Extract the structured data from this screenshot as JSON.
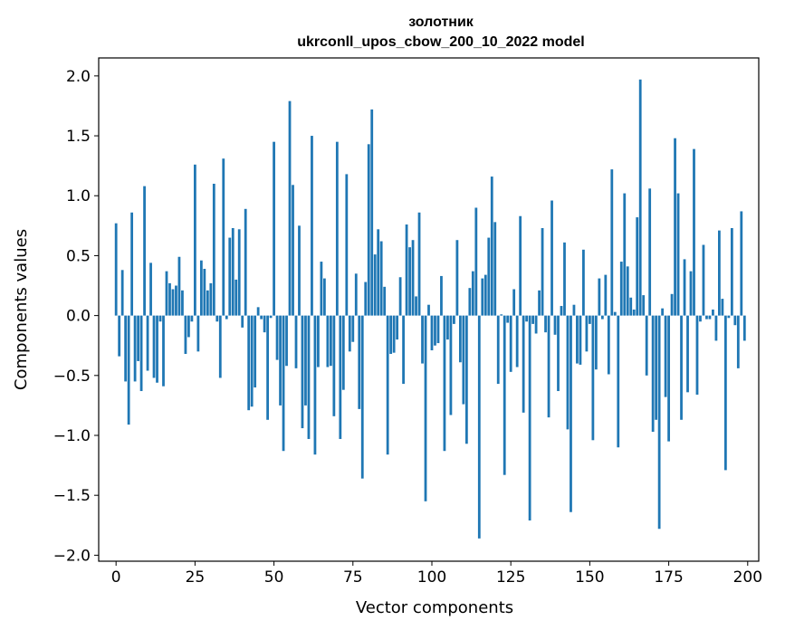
{
  "chart_data": {
    "type": "bar",
    "title": "золотник",
    "subtitle": "ukrconll_upos_cbow_200_10_2022 model",
    "xlabel": "Vector components",
    "ylabel": "Components values",
    "xlim": [
      -5.5,
      203.5
    ],
    "ylim": [
      -2.05,
      2.15
    ],
    "xticks": [
      0,
      25,
      50,
      75,
      100,
      125,
      150,
      175,
      200
    ],
    "yticks": [
      -2.0,
      -1.5,
      -1.0,
      -0.5,
      0.0,
      0.5,
      1.0,
      1.5,
      2.0
    ],
    "xtick_labels": [
      "0",
      "25",
      "50",
      "75",
      "100",
      "125",
      "150",
      "175",
      "200"
    ],
    "ytick_labels": [
      "−2.0",
      "−1.5",
      "−1.0",
      "−0.5",
      "0.0",
      "0.5",
      "1.0",
      "1.5",
      "2.0"
    ],
    "bar_color": "#1f77b4",
    "values": [
      0.77,
      -0.34,
      0.38,
      -0.55,
      -0.91,
      0.86,
      -0.55,
      -0.38,
      -0.63,
      1.08,
      -0.46,
      0.44,
      -0.52,
      -0.56,
      -0.05,
      -0.59,
      0.37,
      0.27,
      0.22,
      0.25,
      0.49,
      0.21,
      -0.32,
      -0.18,
      -0.05,
      1.26,
      -0.3,
      0.46,
      0.39,
      0.21,
      0.27,
      1.1,
      -0.05,
      -0.52,
      1.31,
      -0.03,
      0.65,
      0.73,
      0.3,
      0.72,
      -0.1,
      0.89,
      -0.79,
      -0.76,
      -0.6,
      0.07,
      -0.03,
      -0.14,
      -0.87,
      -0.02,
      1.45,
      -0.37,
      -0.75,
      -1.13,
      -0.42,
      1.79,
      1.09,
      -0.44,
      0.75,
      -0.94,
      -0.75,
      -1.03,
      1.5,
      -1.16,
      -0.43,
      0.45,
      0.31,
      -0.43,
      -0.42,
      -0.84,
      1.45,
      -1.03,
      -0.62,
      1.18,
      -0.3,
      -0.22,
      0.35,
      -0.78,
      -1.36,
      0.28,
      1.43,
      1.72,
      0.51,
      0.72,
      0.62,
      0.24,
      -1.16,
      -0.32,
      -0.31,
      -0.2,
      0.32,
      -0.57,
      0.76,
      0.57,
      0.63,
      0.16,
      0.86,
      -0.4,
      -1.55,
      0.09,
      -0.29,
      -0.25,
      -0.23,
      0.33,
      -1.13,
      -0.2,
      -0.83,
      -0.07,
      0.63,
      -0.39,
      -0.74,
      -1.07,
      0.23,
      0.37,
      0.9,
      -1.86,
      0.31,
      0.34,
      0.65,
      1.16,
      0.78,
      -0.57,
      0.01,
      -1.33,
      -0.06,
      -0.47,
      0.22,
      -0.43,
      0.83,
      -0.81,
      -0.05,
      -1.71,
      -0.07,
      -0.15,
      0.21,
      0.73,
      -0.14,
      -0.85,
      0.96,
      -0.16,
      -0.63,
      0.08,
      0.61,
      -0.95,
      -1.64,
      0.09,
      -0.4,
      -0.41,
      0.55,
      -0.3,
      -0.07,
      -1.04,
      -0.45,
      0.31,
      -0.03,
      0.34,
      -0.49,
      1.22,
      0.03,
      -1.1,
      0.45,
      1.02,
      0.41,
      0.15,
      0.05,
      0.82,
      1.97,
      0.17,
      -0.5,
      1.06,
      -0.97,
      -0.87,
      -1.78,
      0.06,
      -0.68,
      -1.05,
      0.18,
      1.48,
      1.02,
      -0.87,
      0.47,
      -0.64,
      0.37,
      1.39,
      -0.66,
      -0.05,
      0.59,
      -0.03,
      -0.03,
      0.05,
      -0.21,
      0.71,
      0.14,
      -1.29,
      -0.02,
      0.73,
      -0.08,
      -0.44,
      0.87,
      -0.21
    ]
  }
}
